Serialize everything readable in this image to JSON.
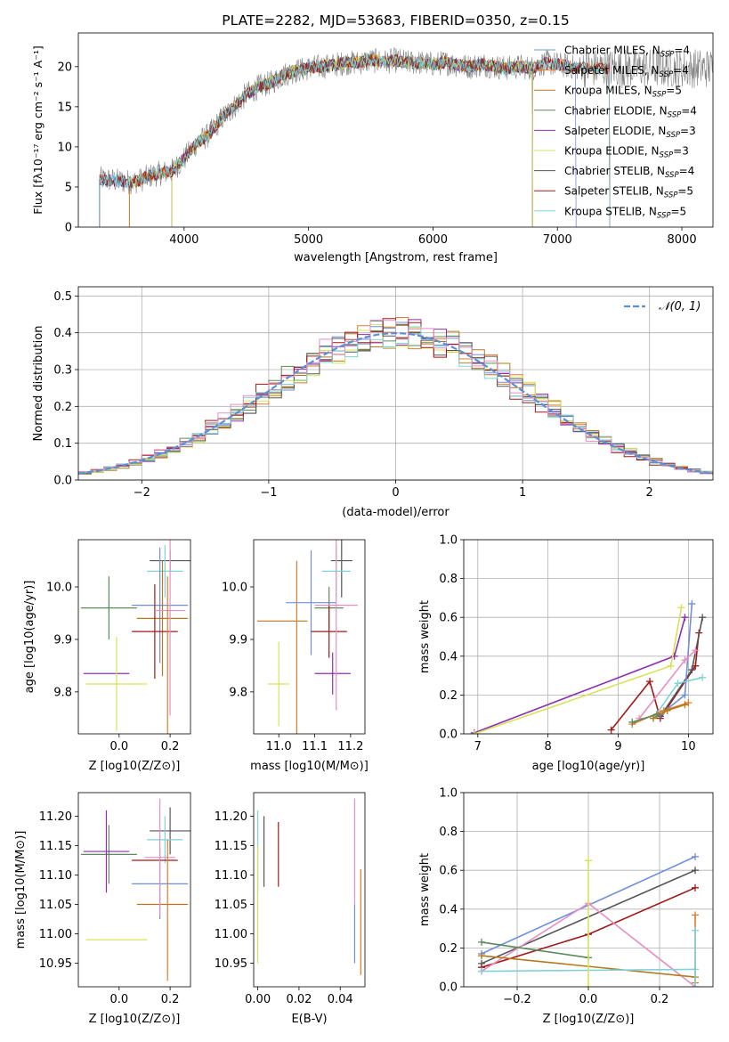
{
  "figure": {
    "title": "PLATE=2282, MJD=53683, FIBERID=0350, z=0.15"
  },
  "colors": {
    "Chabrier MILES": "#6f8fdc",
    "Salpeter MILES": "#e07b2c",
    "Kroupa MILES": "#b5791c",
    "Chabrier ELODIE": "#5b8a5b",
    "Salpeter ELODIE": "#8e2fb0",
    "Kroupa ELODIE": "#d6e35a",
    "Chabrier STELIB": "#555555",
    "Salpeter STELIB": "#a11a1a",
    "Kroupa STELIB": "#7ed3d8",
    "Pink": "#e58fc5",
    "Gauss": "#5b8fd6"
  },
  "chart_data": [
    {
      "id": "spectrum",
      "type": "line",
      "title": "PLATE=2282, MJD=53683, FIBERID=0350, z=0.15",
      "xlabel": "wavelength [Angstrom, rest frame]",
      "ylabel": "Flux [fλ10⁻¹⁷ erg cm⁻² s⁻¹ A⁻¹]",
      "xlim": [
        3150,
        8250
      ],
      "ylim": [
        0,
        24.2
      ],
      "xticks": [
        4000,
        5000,
        6000,
        7000,
        8000
      ],
      "yticks": [
        0,
        5,
        10,
        15,
        20
      ],
      "continuum_x": [
        3320,
        3450,
        3600,
        3750,
        3900,
        4000,
        4100,
        4200,
        4300,
        4400,
        4500,
        4600,
        4700,
        4800,
        4900,
        5000,
        5100,
        5200,
        5300,
        5400,
        5500,
        5600,
        5700,
        5800,
        5900,
        6000,
        6100,
        6200,
        6300,
        6400,
        6500,
        6600,
        6700,
        6800,
        6900,
        7000,
        7100,
        7200
      ],
      "continuum_y": [
        6.0,
        5.8,
        5.6,
        6.5,
        7.0,
        8.5,
        10.5,
        11.5,
        13.5,
        15.0,
        16.5,
        17.5,
        18.0,
        19.0,
        19.5,
        19.8,
        20.0,
        20.2,
        20.5,
        20.5,
        20.8,
        20.6,
        20.8,
        20.5,
        20.5,
        20.3,
        20.5,
        20.2,
        20.0,
        20.3,
        20.0,
        19.8,
        20.0,
        19.8,
        20.5,
        20.3,
        20.0,
        19.8
      ],
      "legend_location": "upper right",
      "legend": [
        {
          "imf": "Chabrier",
          "lib": "MILES",
          "n": "4"
        },
        {
          "imf": "Salpeter",
          "lib": "MILES",
          "n": "4"
        },
        {
          "imf": "Kroupa",
          "lib": "MILES",
          "n": "5"
        },
        {
          "imf": "Chabrier",
          "lib": "ELODIE",
          "n": "4"
        },
        {
          "imf": "Salpeter",
          "lib": "ELODIE",
          "n": "3"
        },
        {
          "imf": "Kroupa",
          "lib": "ELODIE",
          "n": "3"
        },
        {
          "imf": "Chabrier",
          "lib": "STELIB",
          "n": "4"
        },
        {
          "imf": "Salpeter",
          "lib": "STELIB",
          "n": "5"
        },
        {
          "imf": "Kroupa",
          "lib": "STELIB",
          "n": "5"
        }
      ]
    },
    {
      "id": "residuals",
      "type": "bar",
      "xlabel": "(data-model)/error",
      "ylabel": "Normed distribution",
      "xlim": [
        -2.5,
        2.5
      ],
      "ylim": [
        0,
        0.525
      ],
      "xticks": [
        -2,
        -1,
        0,
        1,
        2
      ],
      "yticks": [
        0.0,
        0.1,
        0.2,
        0.3,
        0.4,
        0.5
      ],
      "bin_width": 0.1,
      "legend_label": "𝒩(0, 1)",
      "legend_location": "upper right",
      "grid": true
    },
    {
      "id": "age-vs-Z",
      "type": "scatter",
      "xlabel": "Z [log10(Z/Z⊙)]",
      "ylabel": "age  [log10(age/yr)]",
      "xlim": [
        -0.16,
        0.28
      ],
      "ylim": [
        9.72,
        10.09
      ],
      "xticks": [
        0.0,
        0.2
      ],
      "yticks": [
        9.8,
        9.9,
        10.0
      ],
      "points": [
        {
          "c": "Chabrier ELODIE",
          "x": -0.04,
          "y": 9.96,
          "xe": 0.11,
          "ye": 0.06
        },
        {
          "c": "Salpeter ELODIE",
          "x": -0.05,
          "y": 9.835,
          "xe": 0.09,
          "ye": 0.0
        },
        {
          "c": "Kroupa ELODIE",
          "x": -0.01,
          "y": 9.815,
          "xe": 0.12,
          "ye": 0.09
        },
        {
          "c": "Chabrier STELIB",
          "x": 0.2,
          "y": 10.05,
          "xe": 0.08,
          "ye": 0.02
        },
        {
          "c": "Kroupa STELIB",
          "x": 0.18,
          "y": 10.03,
          "xe": 0.07,
          "ye": 0.05
        },
        {
          "c": "Chabrier MILES",
          "x": 0.16,
          "y": 9.965,
          "xe": 0.11,
          "ye": 0.11
        },
        {
          "c": "Kroupa MILES",
          "x": 0.17,
          "y": 9.94,
          "xe": 0.1,
          "ye": 0.11
        },
        {
          "c": "Salpeter STELIB",
          "x": 0.14,
          "y": 9.915,
          "xe": 0.09,
          "ye": 0.09
        },
        {
          "c": "Pink",
          "x": 0.2,
          "y": 9.955,
          "xe": 0.06,
          "ye": 0.2
        },
        {
          "c": "Salpeter MILES",
          "x": 0.19,
          "y": 9.87,
          "xe": 0.0,
          "ye": 0.15
        }
      ]
    },
    {
      "id": "age-vs-mass",
      "type": "scatter",
      "xlabel": "mass [log10(M/M⊙)]",
      "ylabel": "",
      "xlim": [
        10.93,
        11.24
      ],
      "ylim": [
        9.72,
        10.09
      ],
      "xticks": [
        11.0,
        11.1,
        11.2
      ],
      "yticks": [
        9.8,
        9.9,
        10.0
      ],
      "points": [
        {
          "c": "Kroupa MILES",
          "x": 11.01,
          "y": 9.935,
          "xe": 0.07,
          "ye": 0.0
        },
        {
          "c": "Salpeter MILES",
          "x": 11.05,
          "y": 9.88,
          "xe": 0.0,
          "ye": 0.17
        },
        {
          "c": "Chabrier MILES",
          "x": 11.09,
          "y": 9.97,
          "xe": 0.07,
          "ye": 0.1
        },
        {
          "c": "Kroupa ELODIE",
          "x": 11.0,
          "y": 9.815,
          "xe": 0.03,
          "ye": 0.08
        },
        {
          "c": "Chabrier ELODIE",
          "x": 11.14,
          "y": 9.96,
          "xe": 0.04,
          "ye": 0.04
        },
        {
          "c": "Salpeter ELODIE",
          "x": 11.15,
          "y": 9.835,
          "xe": 0.05,
          "ye": 0.04
        },
        {
          "c": "Salpeter STELIB",
          "x": 11.14,
          "y": 9.915,
          "xe": 0.05,
          "ye": 0.05
        },
        {
          "c": "Chabrier STELIB",
          "x": 11.175,
          "y": 10.05,
          "xe": 0.03,
          "ye": 0.07
        },
        {
          "c": "Kroupa STELIB",
          "x": 11.16,
          "y": 10.03,
          "xe": 0.04,
          "ye": 0.05
        },
        {
          "c": "Pink",
          "x": 11.16,
          "y": 9.965,
          "xe": 0.06,
          "ye": 0.2
        }
      ]
    },
    {
      "id": "massweight-vs-age",
      "type": "line",
      "xlabel": "age  [log10(age/yr)]",
      "ylabel": "mass weight",
      "xlim": [
        6.8,
        10.35
      ],
      "ylim": [
        0.0,
        1.0
      ],
      "xticks": [
        7,
        8,
        9,
        10
      ],
      "yticks": [
        0.0,
        0.2,
        0.4,
        0.6,
        0.8,
        1.0
      ],
      "grid": true,
      "series": [
        {
          "c": "Salpeter ELODIE",
          "x": [
            6.95,
            9.8,
            9.95
          ],
          "y": [
            0.005,
            0.4,
            0.6
          ]
        },
        {
          "c": "Kroupa ELODIE",
          "x": [
            6.95,
            9.75,
            9.9
          ],
          "y": [
            0.0,
            0.35,
            0.65
          ]
        },
        {
          "c": "Salpeter STELIB",
          "x": [
            8.9,
            9.45,
            9.6,
            10.1,
            10.15
          ],
          "y": [
            0.02,
            0.27,
            0.08,
            0.35,
            0.52
          ]
        },
        {
          "c": "Chabrier STELIB",
          "x": [
            9.6,
            10.05,
            10.2
          ],
          "y": [
            0.09,
            0.33,
            0.6
          ]
        },
        {
          "c": "Chabrier MILES",
          "x": [
            9.6,
            9.95,
            10.05
          ],
          "y": [
            0.1,
            0.2,
            0.67
          ]
        },
        {
          "c": "Pink",
          "x": [
            9.3,
            9.95,
            10.1
          ],
          "y": [
            0.08,
            0.38,
            0.43
          ]
        },
        {
          "c": "Kroupa STELIB",
          "x": [
            9.5,
            9.85,
            10.2
          ],
          "y": [
            0.08,
            0.26,
            0.29
          ]
        },
        {
          "c": "Salpeter MILES",
          "x": [
            9.2,
            9.65,
            10.0
          ],
          "y": [
            0.05,
            0.12,
            0.16
          ]
        },
        {
          "c": "Kroupa MILES",
          "x": [
            9.5,
            9.7,
            9.95
          ],
          "y": [
            0.08,
            0.12,
            0.15
          ]
        },
        {
          "c": "Chabrier ELODIE",
          "x": [
            9.2,
            9.55
          ],
          "y": [
            0.06,
            0.1
          ]
        }
      ]
    },
    {
      "id": "mass-vs-Z",
      "type": "scatter",
      "xlabel": "Z [log10(Z/Z⊙)]",
      "ylabel": "mass [log10(M/M⊙)]",
      "xlim": [
        -0.16,
        0.28
      ],
      "ylim": [
        10.91,
        11.24
      ],
      "xticks": [
        0.0,
        0.2
      ],
      "yticks": [
        10.95,
        11.0,
        11.05,
        11.1,
        11.15,
        11.2
      ],
      "points": [
        {
          "c": "Chabrier ELODIE",
          "x": -0.04,
          "y": 11.135,
          "xe": 0.11,
          "ye": 0.05
        },
        {
          "c": "Salpeter ELODIE",
          "x": -0.05,
          "y": 11.14,
          "xe": 0.09,
          "ye": 0.07
        },
        {
          "c": "Kroupa ELODIE",
          "x": -0.01,
          "y": 10.99,
          "xe": 0.12,
          "ye": 0.0
        },
        {
          "c": "Chabrier STELIB",
          "x": 0.2,
          "y": 11.175,
          "xe": 0.08,
          "ye": 0.04
        },
        {
          "c": "Kroupa STELIB",
          "x": 0.18,
          "y": 11.16,
          "xe": 0.07,
          "ye": 0.04
        },
        {
          "c": "Chabrier MILES",
          "x": 0.16,
          "y": 11.085,
          "xe": 0.11,
          "ye": 0.06
        },
        {
          "c": "Kroupa MILES",
          "x": 0.17,
          "y": 11.05,
          "xe": 0.1,
          "ye": 0.0
        },
        {
          "c": "Salpeter STELIB",
          "x": 0.14,
          "y": 11.125,
          "xe": 0.09,
          "ye": 0.0
        },
        {
          "c": "Pink",
          "x": 0.16,
          "y": 11.13,
          "xe": 0.06,
          "ye": 0.1
        },
        {
          "c": "Salpeter MILES",
          "x": 0.19,
          "y": 11.04,
          "xe": 0.0,
          "ye": 0.12
        }
      ]
    },
    {
      "id": "mass-vs-ebv",
      "type": "scatter",
      "xlabel": "E(B-V)",
      "ylabel": "",
      "xlim": [
        -0.002,
        0.052
      ],
      "ylim": [
        10.91,
        11.24
      ],
      "xticks": [
        0.0,
        0.02,
        0.04
      ],
      "yticks": [
        10.95,
        11.0,
        11.05,
        11.1,
        11.15,
        11.2
      ],
      "points": [
        {
          "c": "Kroupa STELIB",
          "x": 0.0,
          "y": 11.14,
          "xe": 0.0,
          "ye": 0.07
        },
        {
          "c": "Kroupa ELODIE",
          "x": 0.0,
          "y": 11.05,
          "xe": 0.0,
          "ye": 0.1
        },
        {
          "c": "Chabrier STELIB",
          "x": 0.003,
          "y": 11.14,
          "xe": 0.0,
          "ye": 0.06
        },
        {
          "c": "Salpeter STELIB",
          "x": 0.01,
          "y": 11.135,
          "xe": 0.0,
          "ye": 0.055
        },
        {
          "c": "Pink",
          "x": 0.047,
          "y": 11.14,
          "xe": 0.0,
          "ye": 0.09
        },
        {
          "c": "Chabrier MILES",
          "x": 0.047,
          "y": 11.0,
          "xe": 0.0,
          "ye": 0.05
        },
        {
          "c": "Salpeter MILES",
          "x": 0.05,
          "y": 11.02,
          "xe": 0.0,
          "ye": 0.09
        }
      ]
    },
    {
      "id": "massweight-vs-Z",
      "type": "line",
      "xlabel": "Z [log10(Z/Z⊙)]",
      "ylabel": "mass weight",
      "xlim": [
        -0.35,
        0.35
      ],
      "ylim": [
        0.0,
        1.0
      ],
      "xticks": [
        -0.2,
        0.0,
        0.2
      ],
      "yticks": [
        0.0,
        0.2,
        0.4,
        0.6,
        0.8,
        1.0
      ],
      "grid": true,
      "series": [
        {
          "c": "Chabrier MILES",
          "x": [
            -0.3,
            0.3
          ],
          "y": [
            0.17,
            0.67
          ]
        },
        {
          "c": "Chabrier STELIB",
          "x": [
            -0.3,
            0.3
          ],
          "y": [
            0.12,
            0.6
          ]
        },
        {
          "c": "Salpeter STELIB",
          "x": [
            -0.3,
            0.0,
            0.3
          ],
          "y": [
            0.1,
            0.27,
            0.51
          ]
        },
        {
          "c": "Pink",
          "x": [
            -0.3,
            0.0,
            0.3
          ],
          "y": [
            0.08,
            0.43,
            0.0
          ]
        },
        {
          "c": "Chabrier ELODIE",
          "x": [
            -0.3,
            0.0
          ],
          "y": [
            0.23,
            0.15
          ]
        },
        {
          "c": "Kroupa MILES",
          "x": [
            -0.3,
            0.3
          ],
          "y": [
            0.16,
            0.05
          ]
        },
        {
          "c": "Kroupa STELIB",
          "x": [
            -0.3,
            0.3
          ],
          "y": [
            0.08,
            0.09
          ]
        },
        {
          "c": "Kroupa ELODIE",
          "x": [
            0.0,
            0.0
          ],
          "y": [
            0.65,
            0.0
          ]
        },
        {
          "c": "Salpeter MILES",
          "x": [
            0.3,
            0.3
          ],
          "y": [
            0.37,
            0.02
          ]
        },
        {
          "c": "Kroupa STELIB",
          "x": [
            0.3,
            0.3
          ],
          "y": [
            0.29,
            0.0
          ]
        }
      ]
    }
  ]
}
